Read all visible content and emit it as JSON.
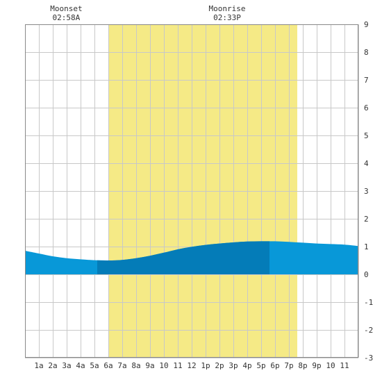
{
  "chart_data": {
    "type": "area",
    "annotations": [
      {
        "label": "Moonset",
        "time": "02:58A",
        "hour": 2.97
      },
      {
        "label": "Moonrise",
        "time": "02:33P",
        "hour": 14.55
      }
    ],
    "x_ticks": [
      {
        "hour": 1,
        "label": "1a"
      },
      {
        "hour": 2,
        "label": "2a"
      },
      {
        "hour": 3,
        "label": "3a"
      },
      {
        "hour": 4,
        "label": "4a"
      },
      {
        "hour": 5,
        "label": "5a"
      },
      {
        "hour": 6,
        "label": "6a"
      },
      {
        "hour": 7,
        "label": "7a"
      },
      {
        "hour": 8,
        "label": "8a"
      },
      {
        "hour": 9,
        "label": "9a"
      },
      {
        "hour": 10,
        "label": "10"
      },
      {
        "hour": 11,
        "label": "11"
      },
      {
        "hour": 12,
        "label": "12"
      },
      {
        "hour": 13,
        "label": "1p"
      },
      {
        "hour": 14,
        "label": "2p"
      },
      {
        "hour": 15,
        "label": "3p"
      },
      {
        "hour": 16,
        "label": "4p"
      },
      {
        "hour": 17,
        "label": "5p"
      },
      {
        "hour": 18,
        "label": "6p"
      },
      {
        "hour": 19,
        "label": "7p"
      },
      {
        "hour": 20,
        "label": "8p"
      },
      {
        "hour": 21,
        "label": "9p"
      },
      {
        "hour": 22,
        "label": "10"
      },
      {
        "hour": 23,
        "label": "11"
      }
    ],
    "y_ticks": [
      9,
      8,
      7,
      6,
      5,
      4,
      3,
      2,
      1,
      0,
      -1,
      -2,
      -3
    ],
    "xlim": [
      0,
      24
    ],
    "ylim": [
      -3,
      9
    ],
    "grid": true,
    "daylight": {
      "start_hour": 6.0,
      "end_hour": 19.6
    },
    "dark_band": {
      "start_hour": 5.2,
      "end_hour": 17.6
    },
    "series": [
      {
        "x": [
          0,
          1,
          2,
          3,
          4,
          5,
          6,
          7,
          8,
          9,
          10,
          11,
          12,
          13,
          14,
          15,
          16,
          17,
          18,
          19,
          20,
          21,
          22,
          23,
          24
        ],
        "y": [
          0.85,
          0.75,
          0.65,
          0.58,
          0.54,
          0.51,
          0.5,
          0.52,
          0.58,
          0.67,
          0.78,
          0.9,
          0.99,
          1.06,
          1.11,
          1.15,
          1.18,
          1.19,
          1.19,
          1.17,
          1.14,
          1.11,
          1.09,
          1.07,
          1.02
        ]
      }
    ],
    "colors": {
      "daylight": "#f5ea86",
      "tide": "#0898d8",
      "tide_dark": "#047cb8",
      "grid": "#c8c8c8",
      "frame": "#888888"
    }
  }
}
